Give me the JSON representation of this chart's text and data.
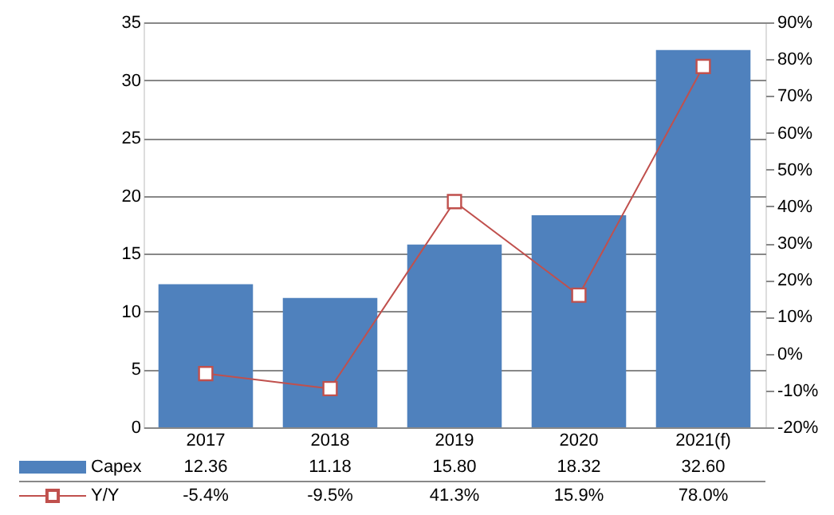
{
  "chart_data": {
    "type": "bar",
    "categories": [
      "2017",
      "2018",
      "2019",
      "2020",
      "2021(f)"
    ],
    "series": [
      {
        "name": "Capex",
        "color": "#4f81bd",
        "values": [
          12.36,
          11.18,
          15.8,
          18.32,
          32.6
        ],
        "value_labels": [
          "12.36",
          "11.18",
          "15.80",
          "18.32",
          "32.60"
        ]
      },
      {
        "name": "Y/Y",
        "type": "line",
        "axis": "y2",
        "color": "#c0504d",
        "values": [
          -5.4,
          -9.5,
          41.3,
          15.9,
          78.0
        ],
        "value_labels": [
          "-5.4%",
          "-9.5%",
          "41.3%",
          "15.9%",
          "78.0%"
        ]
      }
    ],
    "ylim": [
      0,
      35
    ],
    "yticks": [
      0,
      5,
      10,
      15,
      20,
      25,
      30,
      35
    ],
    "y2lim": [
      -20,
      90
    ],
    "y2ticks": [
      {
        "value": -20,
        "label": "-20%"
      },
      {
        "value": -10,
        "label": "-10%"
      },
      {
        "value": 0,
        "label": "0%"
      },
      {
        "value": 10,
        "label": "10%"
      },
      {
        "value": 20,
        "label": "20%"
      },
      {
        "value": 30,
        "label": "30%"
      },
      {
        "value": 40,
        "label": "40%"
      },
      {
        "value": 50,
        "label": "50%"
      },
      {
        "value": 60,
        "label": "60%"
      },
      {
        "value": 70,
        "label": "70%"
      },
      {
        "value": 80,
        "label": "80%"
      },
      {
        "value": 90,
        "label": "90%"
      }
    ],
    "grid": "y",
    "legend": "bottom left",
    "marker": "square",
    "line_style": "solid"
  }
}
